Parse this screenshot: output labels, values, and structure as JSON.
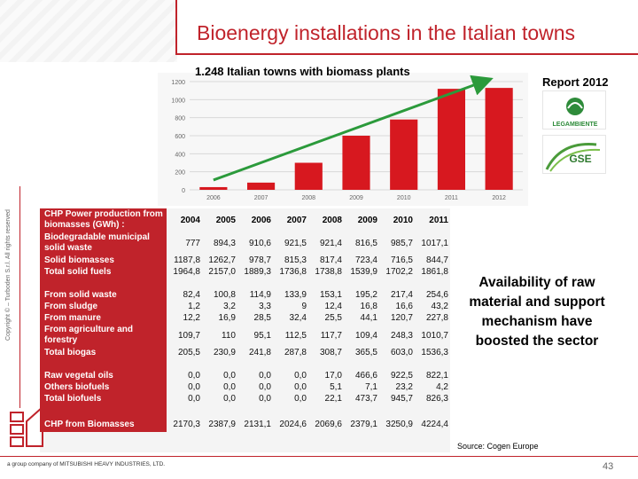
{
  "title": "Bioenergy installations in the Italian towns",
  "copyright": "Copyright © – Turboden S.r.l. All rights reserved",
  "chart": {
    "subtitle": "1.248 Italian towns with biomass plants",
    "bar_color": "#d7181f",
    "arrow_color": "#2b9a3b"
  },
  "chart_data": {
    "type": "bar",
    "categories": [
      "2006",
      "2007",
      "2008",
      "2009",
      "2010",
      "2011",
      "2012"
    ],
    "values": [
      30,
      80,
      300,
      600,
      780,
      1120,
      1130
    ],
    "ylim": [
      0,
      1200
    ],
    "yticks": [
      "0",
      "200",
      "400",
      "600",
      "800",
      "1000",
      "1200"
    ],
    "grid": true
  },
  "report": "Report 2012",
  "logos": {
    "legambiente": "LEGAMBIENTE",
    "gse": "GSE"
  },
  "table": {
    "header_label": "CHP Power production from biomasses (GWh) :",
    "years": [
      "2004",
      "2005",
      "2006",
      "2007",
      "2008",
      "2009",
      "2010",
      "2011"
    ],
    "rows": [
      {
        "label": "Biodegradable municipal solid waste",
        "values": [
          "777",
          "894,3",
          "910,6",
          "921,5",
          "921,4",
          "816,5",
          "985,7",
          "1017,1"
        ]
      },
      {
        "label": "Solid biomasses",
        "values": [
          "1187,8",
          "1262,7",
          "978,7",
          "815,3",
          "817,4",
          "723,4",
          "716,5",
          "844,7"
        ]
      },
      {
        "label": "Total solid fuels",
        "values": [
          "1964,8",
          "2157,0",
          "1889,3",
          "1736,8",
          "1738,8",
          "1539,9",
          "1702,2",
          "1861,8"
        ]
      },
      {
        "label": "",
        "values": [
          "",
          "",
          "",
          "",
          "",
          "",
          "",
          ""
        ]
      },
      {
        "label": "From solid waste",
        "values": [
          "82,4",
          "100,8",
          "114,9",
          "133,9",
          "153,1",
          "195,2",
          "217,4",
          "254,6"
        ]
      },
      {
        "label": "From sludge",
        "values": [
          "1,2",
          "3,2",
          "3,3",
          "9",
          "12,4",
          "16,8",
          "16,6",
          "43,2"
        ]
      },
      {
        "label": "From manure",
        "values": [
          "12,2",
          "16,9",
          "28,5",
          "32,4",
          "25,5",
          "44,1",
          "120,7",
          "227,8"
        ]
      },
      {
        "label": "From agriculture and forestry",
        "values": [
          "109,7",
          "110",
          "95,1",
          "112,5",
          "117,7",
          "109,4",
          "248,3",
          "1010,7"
        ]
      },
      {
        "label": "Total biogas",
        "values": [
          "205,5",
          "230,9",
          "241,8",
          "287,8",
          "308,7",
          "365,5",
          "603,0",
          "1536,3"
        ]
      },
      {
        "label": "",
        "values": [
          "",
          "",
          "",
          "",
          "",
          "",
          "",
          ""
        ]
      },
      {
        "label": "Raw vegetal oils",
        "values": [
          "0,0",
          "0,0",
          "0,0",
          "0,0",
          "17,0",
          "466,6",
          "922,5",
          "822,1"
        ]
      },
      {
        "label": "Others biofuels",
        "values": [
          "0,0",
          "0,0",
          "0,0",
          "0,0",
          "5,1",
          "7,1",
          "23,2",
          "4,2"
        ]
      },
      {
        "label": "Total biofuels",
        "values": [
          "0,0",
          "0,0",
          "0,0",
          "0,0",
          "22,1",
          "473,7",
          "945,7",
          "826,3"
        ]
      },
      {
        "label": "",
        "values": [
          "",
          "",
          "",
          "",
          "",
          "",
          "",
          ""
        ]
      },
      {
        "label": "CHP from Biomasses",
        "values": [
          "2170,3",
          "2387,9",
          "2131,1",
          "2024,6",
          "2069,6",
          "2379,1",
          "3250,9",
          "4224,4"
        ]
      }
    ]
  },
  "availability_text": "Availability of raw material and support mechanism have boosted the sector",
  "source": "Source: Cogen Europe",
  "footer": "a group company of  MITSUBISHI HEAVY INDUSTRIES, LTD.",
  "page_number": "43"
}
